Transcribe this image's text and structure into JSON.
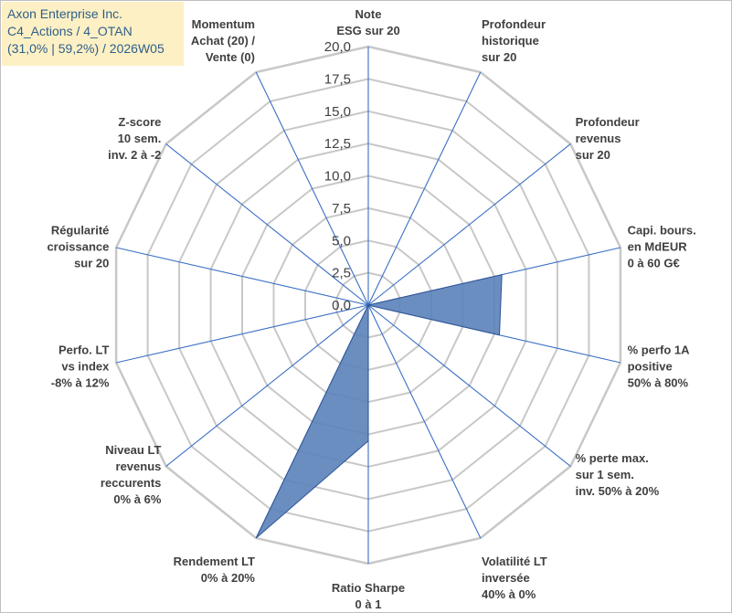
{
  "header": {
    "line1": "Axon Enterprise Inc.",
    "line2": "C4_Actions / 4_OTAN",
    "line3": "(31,0% | 59,2%) / 2026W05"
  },
  "colors": {
    "grid": "#c8c8c8",
    "axis": "#3a6fc4",
    "fill": "#5b82b9",
    "fill_edge": "#2e5597",
    "title_bg": "#fdf0c4",
    "title_text": "#2e5f8a"
  },
  "chart_data": {
    "type": "radar",
    "title": "",
    "rmin": 0,
    "rmax": 20,
    "tick_step": 2.5,
    "tick_labels": [
      "0,0",
      "2,5",
      "5,0",
      "7,5",
      "10,0",
      "12,5",
      "15,0",
      "17,5",
      "20,0"
    ],
    "axes": [
      [
        "Note",
        "ESG sur 20"
      ],
      [
        "Profondeur",
        "historique",
        "sur 20"
      ],
      [
        "Profondeur",
        "revenus",
        "sur 20"
      ],
      [
        "Capi. bours.",
        "en MdEUR",
        "0 à 60 G€"
      ],
      [
        "% perfo 1A",
        "positive",
        "50% à 80%"
      ],
      [
        "% perte max.",
        "sur 1 sem.",
        "inv. 50% à 20%"
      ],
      [
        "Volatilité LT",
        "inversée",
        "40% à 0%"
      ],
      [
        "Ratio Sharpe",
        "0 à 1"
      ],
      [
        "Rendement LT",
        "0% à 20%"
      ],
      [
        "Niveau LT",
        "revenus",
        "reccurents",
        "0% à 6%"
      ],
      [
        "Perfo. LT",
        "vs index",
        "-8% à 12%"
      ],
      [
        "Régularité",
        "croissance",
        "sur 20"
      ],
      [
        "Z-score",
        "10 sem.",
        "inv. 2 à -2"
      ],
      [
        "Momentum",
        "Achat (20) /",
        "Vente (0)"
      ]
    ],
    "series": [
      {
        "name": "Axon Enterprise Inc.",
        "values": [
          0,
          0,
          0,
          10.6,
          10.4,
          0,
          0,
          10.5,
          20,
          0,
          0,
          0,
          0,
          0
        ]
      }
    ]
  }
}
